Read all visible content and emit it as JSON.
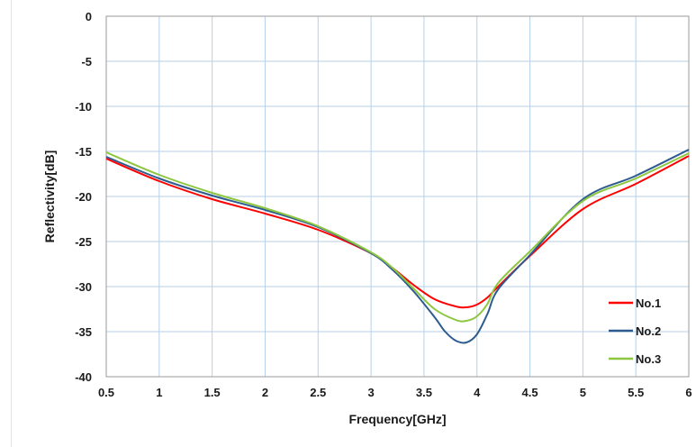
{
  "chart_data": {
    "type": "line",
    "title": "",
    "xlabel": "Frequency[GHz]",
    "ylabel": "Reflectivity[dB]",
    "xlim": [
      0.5,
      6
    ],
    "ylim": [
      -40,
      0
    ],
    "xticks": [
      0.5,
      1,
      1.5,
      2,
      2.5,
      3,
      3.5,
      4,
      4.5,
      5,
      5.5,
      6
    ],
    "xtick_labels": [
      "0.5",
      "1",
      "1.5",
      "2",
      "2.5",
      "3",
      "3.5",
      "4",
      "4.5",
      "5",
      "5.5",
      "6"
    ],
    "yticks": [
      0,
      -5,
      -10,
      -15,
      -20,
      -25,
      -30,
      -35,
      -40
    ],
    "ytick_labels": [
      "0",
      "-5",
      "-10",
      "-15",
      "-20",
      "-25",
      "-30",
      "-35",
      "-40"
    ],
    "grid": true,
    "legend_position": "bottom-right",
    "series": [
      {
        "name": "No.1",
        "color": "#ff0000",
        "x": [
          0.5,
          1,
          1.5,
          2,
          2.5,
          3,
          3.2,
          3.4,
          3.6,
          3.8,
          3.9,
          4.0,
          4.1,
          4.2,
          4.5,
          5,
          5.5,
          6
        ],
        "y": [
          -15.8,
          -18.3,
          -20.3,
          -21.9,
          -23.7,
          -26.3,
          -27.9,
          -29.8,
          -31.4,
          -32.2,
          -32.3,
          -32.0,
          -31.2,
          -30.0,
          -26.6,
          -21.4,
          -18.6,
          -15.5
        ]
      },
      {
        "name": "No.2",
        "color": "#2e5b8f",
        "x": [
          0.5,
          1,
          1.5,
          2,
          2.5,
          3,
          3.2,
          3.4,
          3.6,
          3.7,
          3.8,
          3.9,
          4.0,
          4.1,
          4.2,
          4.5,
          5,
          5.5,
          6
        ],
        "y": [
          -15.6,
          -18.0,
          -19.9,
          -21.5,
          -23.4,
          -26.3,
          -28.1,
          -30.5,
          -33.4,
          -35.0,
          -36.0,
          -36.2,
          -35.3,
          -33.0,
          -30.3,
          -26.5,
          -20.3,
          -17.7,
          -14.8
        ]
      },
      {
        "name": "No.3",
        "color": "#8dc63f",
        "x": [
          0.5,
          1,
          1.5,
          2,
          2.5,
          3,
          3.2,
          3.4,
          3.6,
          3.8,
          3.9,
          4.0,
          4.1,
          4.2,
          4.5,
          5,
          5.5,
          6
        ],
        "y": [
          -15.1,
          -17.6,
          -19.6,
          -21.3,
          -23.3,
          -26.2,
          -27.9,
          -30.2,
          -32.5,
          -33.7,
          -33.8,
          -33.3,
          -31.9,
          -29.6,
          -26.1,
          -20.5,
          -18.0,
          -15.2
        ]
      }
    ]
  }
}
